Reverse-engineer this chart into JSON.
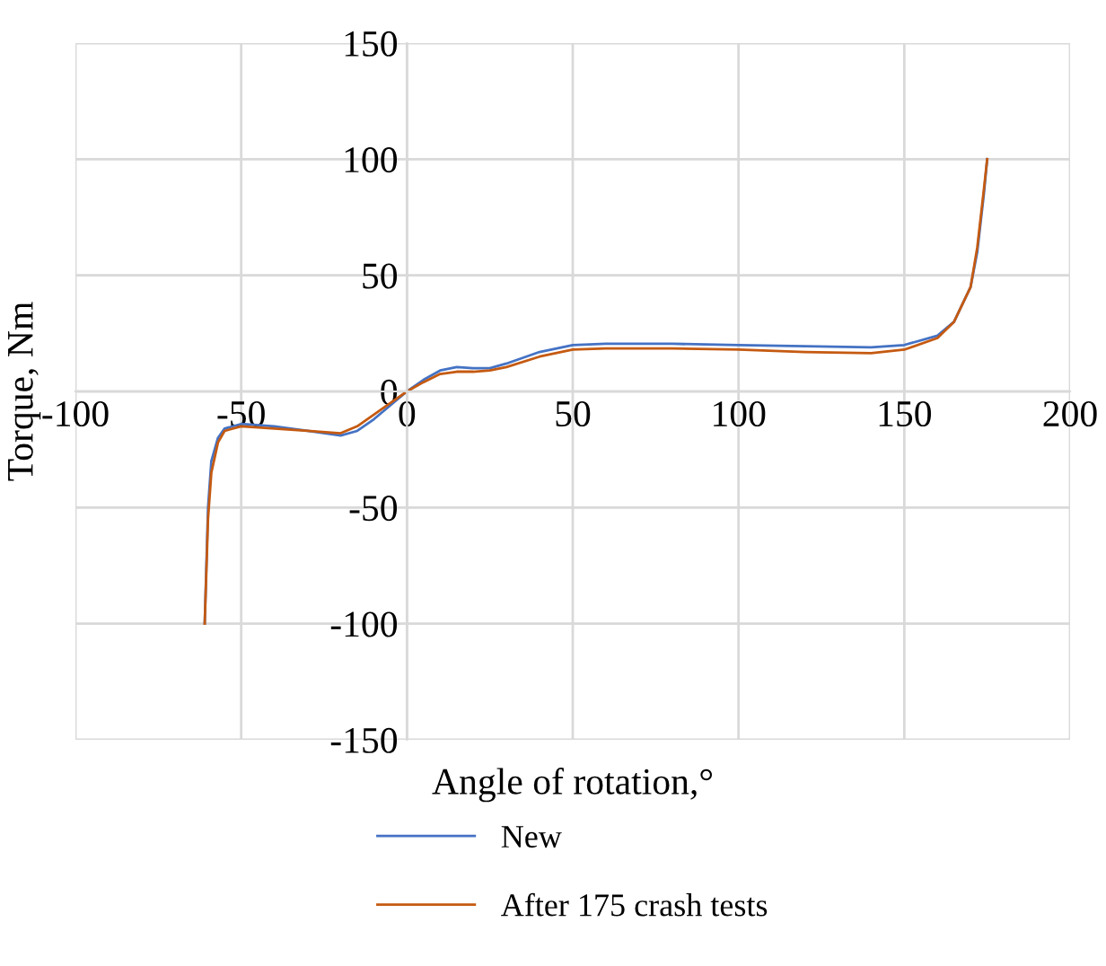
{
  "chart_data": {
    "type": "line",
    "xlabel": "Angle of rotation,°",
    "ylabel": "Torque, Nm",
    "xlim": [
      -100,
      200
    ],
    "ylim": [
      -150,
      150
    ],
    "xticks": [
      -100,
      -50,
      0,
      50,
      100,
      150,
      200
    ],
    "yticks": [
      -150,
      -100,
      -50,
      0,
      50,
      100,
      150
    ],
    "grid": true,
    "legend": "bottom",
    "marker": "none",
    "line_style": "solid",
    "series": [
      {
        "name": "New",
        "color": "#4472c4",
        "x": [
          -61,
          -60,
          -59,
          -57,
          -55,
          -50,
          -40,
          -30,
          -20,
          -15,
          -10,
          -5,
          0,
          5,
          10,
          15,
          20,
          25,
          30,
          40,
          50,
          60,
          80,
          100,
          120,
          140,
          150,
          160,
          165,
          170,
          172,
          174,
          175
        ],
        "values": [
          -100,
          -50,
          -30,
          -20,
          -16,
          -14,
          -15,
          -17,
          -19,
          -17,
          -12,
          -6,
          0,
          5,
          9,
          10.5,
          10,
          10,
          12,
          17,
          20,
          20.5,
          20.5,
          20,
          19.5,
          19,
          20,
          24,
          30,
          45,
          60,
          85,
          100
        ]
      },
      {
        "name": "After 175 crash tests",
        "color": "#c55a11",
        "x": [
          -61,
          -60,
          -59,
          -57,
          -55,
          -50,
          -40,
          -30,
          -20,
          -15,
          -10,
          -5,
          0,
          5,
          10,
          15,
          20,
          25,
          30,
          40,
          50,
          60,
          80,
          100,
          120,
          140,
          150,
          160,
          165,
          170,
          172,
          174,
          175
        ],
        "values": [
          -100,
          -55,
          -35,
          -22,
          -17,
          -15,
          -16,
          -17,
          -18,
          -15,
          -10,
          -5,
          0,
          4,
          7.5,
          8.5,
          8.5,
          9,
          10.5,
          15,
          18,
          18.5,
          18.5,
          18,
          17,
          16.5,
          18,
          23,
          30,
          45,
          62,
          87,
          100
        ]
      }
    ]
  }
}
